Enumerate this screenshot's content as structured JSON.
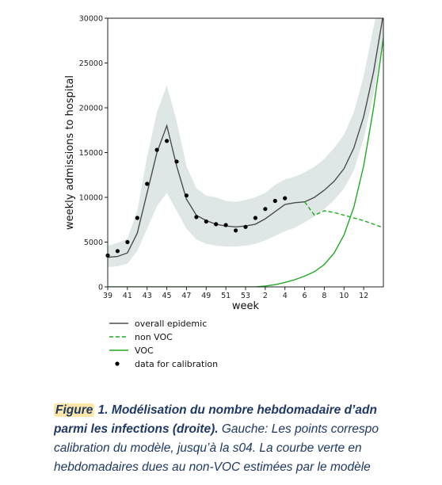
{
  "chart_data": {
    "type": "line",
    "xlabel": "week",
    "ylabel": "weekly admissions to hospital",
    "ylim": [
      0,
      30000
    ],
    "yticks": [
      0,
      5000,
      10000,
      15000,
      20000,
      25000,
      30000
    ],
    "x_tick_labels": [
      "39",
      "41",
      "43",
      "45",
      "47",
      "49",
      "51",
      "53",
      "2",
      "4",
      "6",
      "8",
      "10",
      "12"
    ],
    "legend": {
      "placement": "below",
      "entries": [
        "overall epidemic",
        "non VOC",
        "VOC",
        "data for calibration"
      ]
    },
    "grid": false,
    "series": [
      {
        "name": "overall epidemic",
        "style": "solid",
        "color": "#4d4d4d",
        "values": [
          3300,
          3400,
          3800,
          6000,
          10500,
          15000,
          18000,
          13500,
          9800,
          8000,
          7400,
          7000,
          6800,
          6700,
          6800,
          7000,
          7600,
          8400,
          9200,
          9400,
          9500,
          10000,
          10800,
          11800,
          13200,
          15500,
          19000,
          24000,
          30500
        ]
      },
      {
        "name": "non VOC",
        "style": "dashed",
        "color": "#22aa22",
        "values_from_index": 21,
        "values": [
          8000,
          8500,
          8300,
          8000,
          7700,
          7400,
          7000,
          6600,
          6100,
          5600,
          5000
        ],
        "connect_to_overall_at_index": 20
      },
      {
        "name": "VOC",
        "style": "solid",
        "color": "#22aa22",
        "values": [
          0,
          0,
          0,
          0,
          0,
          0,
          0,
          0,
          0,
          0,
          0,
          0,
          0,
          0,
          0,
          0,
          100,
          250,
          500,
          800,
          1200,
          1700,
          2500,
          3800,
          5800,
          8900,
          13500,
          20000,
          27800
        ]
      },
      {
        "name": "data for calibration",
        "style": "points",
        "color": "#000000",
        "points": [
          [
            0,
            3500
          ],
          [
            1,
            4000
          ],
          [
            2,
            5000
          ],
          [
            3,
            7700
          ],
          [
            4,
            11500
          ],
          [
            5,
            15300
          ],
          [
            6,
            16300
          ],
          [
            7,
            14000
          ],
          [
            8,
            10200
          ],
          [
            9,
            7800
          ],
          [
            10,
            7300
          ],
          [
            11,
            7000
          ],
          [
            12,
            6900
          ],
          [
            13,
            6300
          ],
          [
            14,
            6700
          ],
          [
            15,
            7700
          ],
          [
            16,
            8700
          ],
          [
            17,
            9600
          ],
          [
            18,
            9900
          ]
        ]
      }
    ],
    "band": {
      "name": "confidence band",
      "color": "#dfe6e6",
      "lower": [
        2200,
        2300,
        2600,
        4000,
        6500,
        9000,
        10500,
        8500,
        6500,
        5300,
        4800,
        4600,
        4500,
        4500,
        4600,
        4800,
        5200,
        5700,
        6200,
        6600,
        7200,
        7900,
        8700,
        9700,
        11000,
        13000,
        16500,
        21500,
        28000
      ],
      "upper": [
        4600,
        4900,
        5400,
        8500,
        14500,
        19500,
        22500,
        18500,
        13500,
        11000,
        10200,
        10000,
        9600,
        9500,
        9700,
        10000,
        10500,
        11400,
        12000,
        12300,
        12800,
        13400,
        14300,
        15500,
        17000,
        19500,
        23500,
        29000,
        34000
      ]
    }
  },
  "caption": {
    "figure_label": "Figure",
    "line1_bold": " 1. Modélisation du nombre hebdomadaire d’adn",
    "line2_bold": "parmi les infections (droite).",
    "line2_italic": " Gauche: Les points correspo",
    "line3_italic": "calibration du modèle, jusqu’à la s04. La courbe verte en",
    "line4_italic": "hebdomadaires dues au non-VOC estimées par le modèle"
  }
}
